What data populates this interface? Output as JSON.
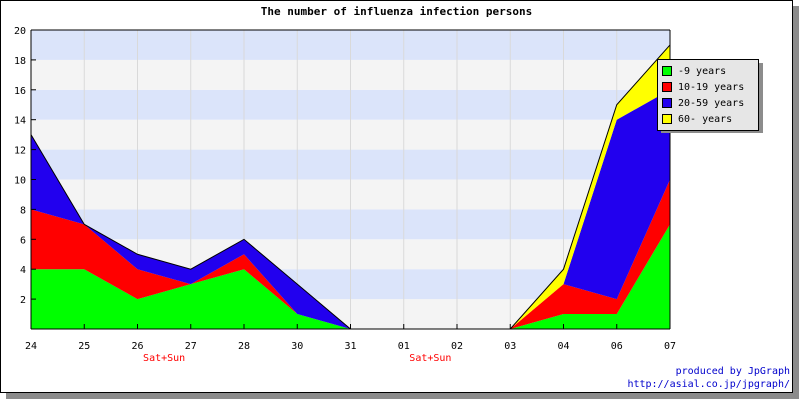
{
  "title": "The number of influenza infection persons",
  "credits": {
    "line1": "produced by JpGraph",
    "line2": "http://asial.co.jp/jpgraph/"
  },
  "weekend_label": "Sat+Sun",
  "chart_data": {
    "type": "area",
    "stacked": true,
    "categories": [
      "24",
      "25",
      "26",
      "27",
      "28",
      "30",
      "31",
      "01",
      "02",
      "03",
      "04",
      "06",
      "07"
    ],
    "weekend_after": [
      "26",
      "01"
    ],
    "y_ticks": [
      "2",
      "4",
      "6",
      "8",
      "10",
      "12",
      "14",
      "16",
      "18",
      "20"
    ],
    "ylim": [
      0,
      20
    ],
    "legend_position": "top-right",
    "series": [
      {
        "name": "-9 years",
        "color": "#00ff00",
        "values": [
          4,
          4,
          2,
          3,
          4,
          1,
          0,
          0,
          0,
          0,
          1,
          1,
          7
        ]
      },
      {
        "name": "10-19 years",
        "color": "#ff0000",
        "values": [
          4,
          3,
          2,
          0,
          1,
          0,
          0,
          0,
          0,
          0,
          2,
          1,
          3
        ]
      },
      {
        "name": "20-59 years",
        "color": "#2200ee",
        "values": [
          5,
          0,
          1,
          1,
          1,
          2,
          0,
          0,
          0,
          0,
          0,
          12,
          6
        ]
      },
      {
        "name": "60- years",
        "color": "#ffff00",
        "values": [
          0,
          0,
          0,
          0,
          0,
          0,
          0,
          0,
          0,
          0,
          1,
          1,
          3
        ]
      }
    ],
    "band_colors": [
      "#f4f4f4",
      "#dbe4fa"
    ]
  }
}
